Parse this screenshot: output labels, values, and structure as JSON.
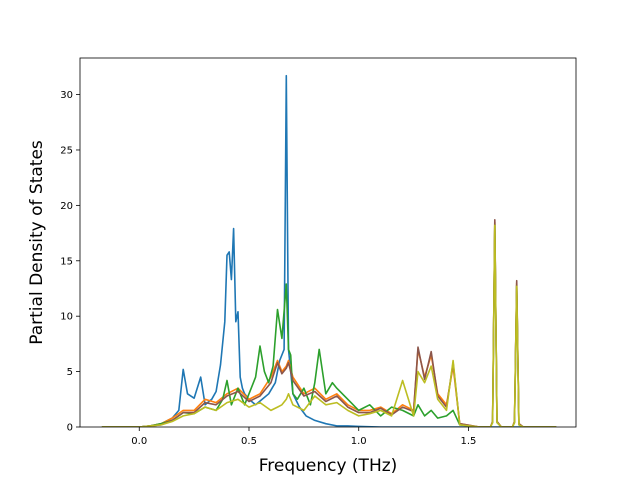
{
  "chart_data": {
    "type": "line",
    "title": "",
    "xlabel": "Frequency (THz)",
    "ylabel": "Partial Density of States",
    "xlim": [
      -0.27,
      1.99
    ],
    "ylim": [
      0,
      33.3
    ],
    "xticks": [
      0.0,
      0.5,
      1.0,
      1.5
    ],
    "xtick_labels": [
      "0.0",
      "0.5",
      "1.0",
      "1.5"
    ],
    "yticks": [
      0,
      5,
      10,
      15,
      20,
      25,
      30
    ],
    "ytick_labels": [
      "0",
      "5",
      "10",
      "15",
      "20",
      "25",
      "30"
    ],
    "grid": false,
    "legend": "none",
    "series": [
      {
        "color": "#1f77b4",
        "x": [
          -0.17,
          0.0,
          0.05,
          0.1,
          0.15,
          0.18,
          0.2,
          0.22,
          0.25,
          0.28,
          0.3,
          0.33,
          0.35,
          0.37,
          0.39,
          0.4,
          0.41,
          0.42,
          0.43,
          0.44,
          0.45,
          0.46,
          0.47,
          0.48,
          0.5,
          0.53,
          0.56,
          0.59,
          0.62,
          0.64,
          0.66,
          0.67,
          0.68,
          0.7,
          0.73,
          0.76,
          0.8,
          0.85,
          0.9,
          0.95,
          1.0,
          1.1,
          1.9
        ],
        "y": [
          0,
          0,
          0.1,
          0.3,
          0.8,
          1.5,
          5.2,
          3.0,
          2.6,
          4.5,
          2.0,
          2.5,
          3.2,
          5.6,
          9.5,
          15.5,
          15.8,
          13.3,
          17.9,
          9.5,
          10.4,
          4.5,
          3.5,
          3.0,
          2.5,
          2.0,
          2.5,
          3.0,
          4.0,
          6.0,
          7.0,
          31.7,
          7.0,
          3.0,
          1.8,
          1.0,
          0.6,
          0.3,
          0.1,
          0.1,
          0.05,
          0,
          0
        ]
      },
      {
        "color": "#ff7f0e",
        "x": [
          -0.17,
          0.0,
          0.05,
          0.1,
          0.15,
          0.2,
          0.25,
          0.3,
          0.35,
          0.4,
          0.45,
          0.5,
          0.55,
          0.6,
          0.63,
          0.65,
          0.67,
          0.68,
          0.7,
          0.75,
          0.8,
          0.85,
          0.9,
          0.95,
          1.0,
          1.05,
          1.1,
          1.15,
          1.2,
          1.25,
          1.27,
          1.3,
          1.33,
          1.36,
          1.4,
          1.43,
          1.46,
          1.55,
          1.6,
          1.61,
          1.62,
          1.63,
          1.65,
          1.7,
          1.71,
          1.72,
          1.73,
          1.75,
          1.9
        ],
        "y": [
          0,
          0,
          0.1,
          0.3,
          0.8,
          1.5,
          1.5,
          2.5,
          2.2,
          3.0,
          3.5,
          2.5,
          3.0,
          4.5,
          6.0,
          5.0,
          5.5,
          6.0,
          4.5,
          3.0,
          3.5,
          2.5,
          3.0,
          2.0,
          1.5,
          1.5,
          1.8,
          1.2,
          2.0,
          1.5,
          7.0,
          4.5,
          6.5,
          3.0,
          2.0,
          5.5,
          0.3,
          0,
          0,
          0.5,
          18.5,
          0.5,
          0,
          0,
          0.5,
          13.0,
          0.3,
          0,
          0
        ]
      },
      {
        "color": "#2ca02c",
        "x": [
          -0.17,
          0.0,
          0.05,
          0.1,
          0.15,
          0.2,
          0.25,
          0.3,
          0.35,
          0.38,
          0.4,
          0.42,
          0.45,
          0.48,
          0.5,
          0.53,
          0.55,
          0.57,
          0.59,
          0.61,
          0.63,
          0.65,
          0.67,
          0.68,
          0.69,
          0.7,
          0.72,
          0.75,
          0.78,
          0.8,
          0.82,
          0.85,
          0.88,
          0.9,
          0.95,
          1.0,
          1.05,
          1.1,
          1.15,
          1.2,
          1.25,
          1.27,
          1.3,
          1.33,
          1.36,
          1.4,
          1.43,
          1.46,
          1.55,
          1.6,
          1.61,
          1.62,
          1.63,
          1.65,
          1.7,
          1.71,
          1.72,
          1.73,
          1.75,
          1.9
        ],
        "y": [
          0,
          0,
          0.1,
          0.3,
          0.6,
          1.3,
          1.2,
          1.8,
          1.5,
          2.5,
          4.2,
          2.0,
          3.5,
          2.0,
          3.0,
          4.5,
          7.3,
          5.0,
          4.0,
          5.5,
          10.6,
          8.0,
          12.9,
          7.0,
          6.5,
          3.0,
          2.5,
          3.5,
          2.0,
          4.0,
          7.0,
          3.0,
          4.0,
          3.5,
          2.5,
          1.5,
          2.0,
          1.0,
          1.8,
          1.5,
          1.0,
          2.0,
          1.0,
          1.5,
          0.8,
          1.0,
          1.5,
          0.2,
          0,
          0,
          0.4,
          18.3,
          0.4,
          0,
          0,
          0.4,
          12.8,
          0.2,
          0,
          0
        ]
      },
      {
        "color": "#8c564b",
        "x": [
          -0.17,
          0.0,
          0.05,
          0.1,
          0.15,
          0.2,
          0.25,
          0.3,
          0.35,
          0.4,
          0.45,
          0.5,
          0.55,
          0.6,
          0.63,
          0.65,
          0.67,
          0.68,
          0.7,
          0.75,
          0.8,
          0.85,
          0.9,
          0.95,
          1.0,
          1.05,
          1.1,
          1.15,
          1.2,
          1.25,
          1.27,
          1.3,
          1.33,
          1.36,
          1.4,
          1.43,
          1.46,
          1.55,
          1.6,
          1.61,
          1.62,
          1.63,
          1.65,
          1.7,
          1.71,
          1.72,
          1.73,
          1.75,
          1.9
        ],
        "y": [
          0,
          0,
          0.1,
          0.2,
          0.6,
          1.3,
          1.3,
          2.2,
          2.0,
          2.8,
          3.2,
          2.3,
          2.8,
          4.0,
          5.8,
          4.8,
          5.3,
          5.8,
          4.2,
          2.8,
          3.2,
          2.3,
          2.8,
          1.8,
          1.3,
          1.3,
          1.7,
          1.1,
          1.8,
          1.4,
          7.2,
          4.3,
          6.8,
          2.8,
          1.8,
          5.8,
          0.3,
          0,
          0,
          0.5,
          18.7,
          0.5,
          0,
          0,
          0.5,
          13.2,
          0.3,
          0,
          0
        ]
      },
      {
        "color": "#bcbd22",
        "x": [
          -0.17,
          0.0,
          0.05,
          0.1,
          0.15,
          0.2,
          0.25,
          0.3,
          0.35,
          0.4,
          0.45,
          0.5,
          0.55,
          0.6,
          0.63,
          0.65,
          0.67,
          0.68,
          0.7,
          0.75,
          0.8,
          0.85,
          0.9,
          0.95,
          1.0,
          1.05,
          1.1,
          1.15,
          1.2,
          1.25,
          1.27,
          1.3,
          1.33,
          1.36,
          1.4,
          1.43,
          1.46,
          1.55,
          1.6,
          1.61,
          1.62,
          1.63,
          1.65,
          1.7,
          1.71,
          1.72,
          1.73,
          1.75,
          1.9
        ],
        "y": [
          0,
          0,
          0.1,
          0.2,
          0.5,
          1.0,
          1.2,
          1.8,
          1.5,
          2.2,
          2.5,
          1.8,
          2.2,
          1.5,
          1.8,
          2.0,
          2.5,
          3.0,
          2.0,
          1.5,
          2.8,
          2.0,
          2.2,
          1.5,
          1.0,
          1.2,
          1.5,
          1.0,
          4.2,
          1.0,
          5.0,
          4.0,
          5.5,
          2.5,
          1.5,
          6.0,
          0.2,
          0,
          0,
          0.4,
          18.2,
          0.4,
          0,
          0,
          0.4,
          12.7,
          0.2,
          0,
          0
        ]
      }
    ]
  }
}
